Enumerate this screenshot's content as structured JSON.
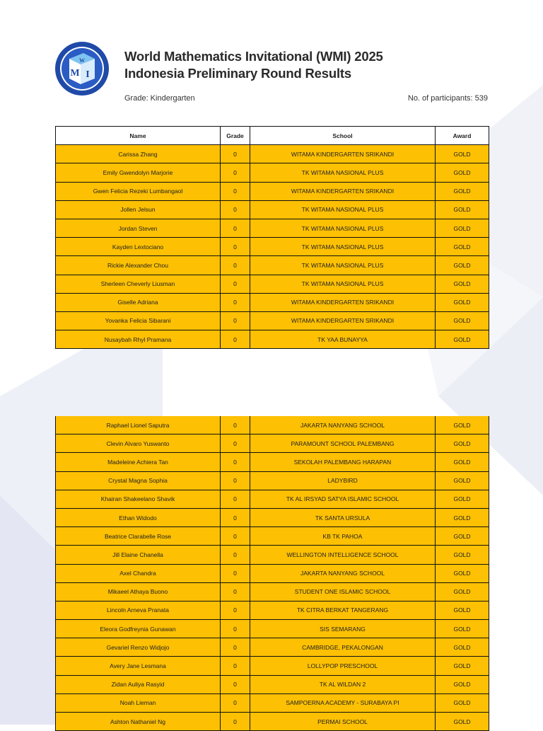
{
  "header": {
    "title_line1": "World Mathematics Invitational (WMI) 2025",
    "title_line2": "Indonesia Preliminary Round Results",
    "grade_label": "Grade: Kindergarten",
    "participants_label": "No. of participants: 539",
    "logo_text": "WMI World Mathematics Invitational"
  },
  "colors": {
    "row_fill": "#fdc002",
    "logo_blue": "#1f4aa8",
    "background_shape": "#eef0f8"
  },
  "table": {
    "columns": [
      "Name",
      "Grade",
      "School",
      "Award"
    ],
    "rows_page1": [
      [
        "Carissa Zhang",
        "0",
        "WITAMA KINDERGARTEN SRIKANDI",
        "GOLD"
      ],
      [
        "Emily Gwendolyn Marjorie",
        "0",
        "TK WITAMA NASIONAL PLUS",
        "GOLD"
      ],
      [
        "Gwen Felicia Rezeki Lumbangaol",
        "0",
        "WITAMA KINDERGARTEN SRIKANDI",
        "GOLD"
      ],
      [
        "Jollen Jelsun",
        "0",
        "TK WITAMA NASIONAL PLUS",
        "GOLD"
      ],
      [
        "Jordan Steven",
        "0",
        "TK WITAMA NASIONAL PLUS",
        "GOLD"
      ],
      [
        "Kayden Lextociano",
        "0",
        "TK WITAMA NASIONAL PLUS",
        "GOLD"
      ],
      [
        "Rickie Alexander Chou",
        "0",
        "TK WITAMA NASIONAL PLUS",
        "GOLD"
      ],
      [
        "Sherleen Cheverly Liusman",
        "0",
        "TK WITAMA NASIONAL PLUS",
        "GOLD"
      ],
      [
        "Giselle Adriana",
        "0",
        "WITAMA KINDERGARTEN SRIKANDI",
        "GOLD"
      ],
      [
        "Yovanka Felicia Sibarani",
        "0",
        "WITAMA KINDERGARTEN SRIKANDI",
        "GOLD"
      ],
      [
        "Nusaybah Rhyl Pramana",
        "0",
        "TK YAA BUNAYYA",
        "GOLD"
      ]
    ],
    "rows_page2": [
      [
        "Raphael Lionel Saputra",
        "0",
        "JAKARTA NANYANG SCHOOL",
        "GOLD"
      ],
      [
        "Clevin Alvaro Yuswanto",
        "0",
        "PARAMOUNT SCHOOL PALEMBANG",
        "GOLD"
      ],
      [
        "Madeleine Achiera Tan",
        "0",
        "SEKOLAH PALEMBANG HARAPAN",
        "GOLD"
      ],
      [
        "Crystal Magna Sophia",
        "0",
        "LADYBIRD",
        "GOLD"
      ],
      [
        "Khairan Shakeelano Shavik",
        "0",
        "TK AL IRSYAD SATYA ISLAMIC SCHOOL",
        "GOLD"
      ],
      [
        "Ethan Widodo",
        "0",
        "TK SANTA URSULA",
        "GOLD"
      ],
      [
        "Beatrice Clarabelle Rose",
        "0",
        "KB TK PAHOA",
        "GOLD"
      ],
      [
        "Jill Elaine Chanella",
        "0",
        "WELLINGTON INTELLIGENCE SCHOOL",
        "GOLD"
      ],
      [
        "Axel Chandra",
        "0",
        "JAKARTA NANYANG SCHOOL",
        "GOLD"
      ],
      [
        "Mikaeel Athaya Buono",
        "0",
        "STUDENT ONE ISLAMIC SCHOOL",
        "GOLD"
      ],
      [
        "Lincoln Arneva Pranata",
        "0",
        "TK CITRA BERKAT TANGERANG",
        "GOLD"
      ],
      [
        "Eleora Godfreynia Gunawan",
        "0",
        "SIS SEMARANG",
        "GOLD"
      ],
      [
        "Gevariel Renzo Widjojo",
        "0",
        "CAMBRIDGE, PEKALONGAN",
        "GOLD"
      ],
      [
        "Avery Jane Lesmana",
        "0",
        "LOLLYPOP PRESCHOOL",
        "GOLD"
      ],
      [
        "Zidan Auliya Rasyid",
        "0",
        "TK AL WILDAN 2",
        "GOLD"
      ],
      [
        "Noah Lieman",
        "0",
        "SAMPOERNA ACADEMY - SURABAYA PI",
        "GOLD"
      ],
      [
        "Ashton Nathaniel Ng",
        "0",
        "PERMAI SCHOOL",
        "GOLD"
      ]
    ]
  }
}
